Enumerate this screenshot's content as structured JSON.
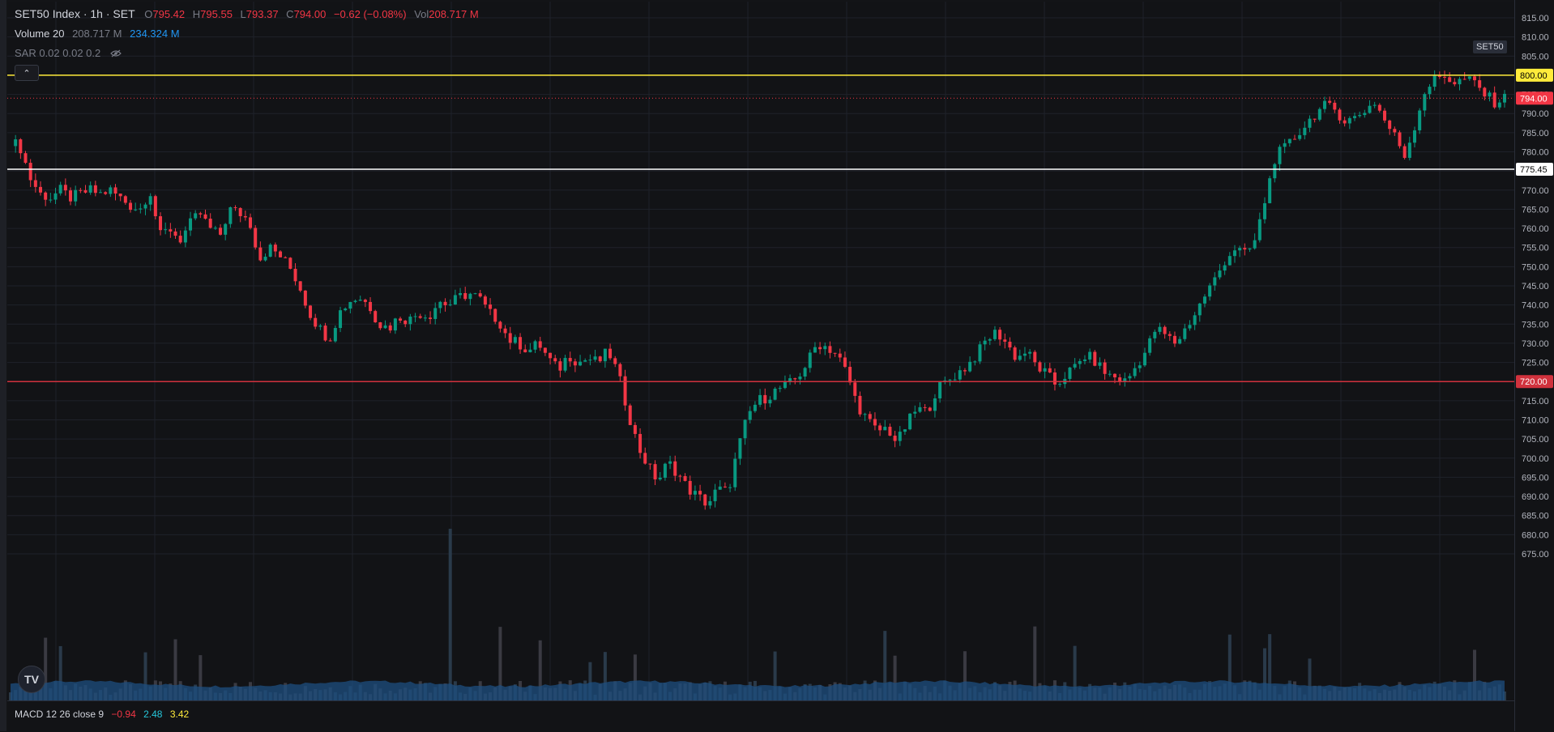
{
  "legend": {
    "symbol": "SET50 Index · 1h · SET",
    "o_label": "O",
    "o_val": "795.42",
    "h_label": "H",
    "h_val": "795.55",
    "l_label": "L",
    "l_val": "793.37",
    "c_label": "C",
    "c_val": "794.00",
    "change": "−0.62 (−0.08%)",
    "vol_label": "Vol",
    "vol_val": "208.717 M",
    "volume_ind": "Volume 20",
    "volume_v1": "208.717 M",
    "volume_v2": "234.324 M",
    "sar": "SAR 0.02 0.02 0.2",
    "collapse_icon": "chevron-up"
  },
  "macd": {
    "label": "MACD 12 26 close 9",
    "v1": "−0.94",
    "v2": "2.48",
    "v3": "3.42"
  },
  "axis": {
    "ticks": [
      "815.00",
      "810.00",
      "805.00",
      "800.00",
      "795.00",
      "790.00",
      "785.00",
      "780.00",
      "775.00",
      "770.00",
      "765.00",
      "760.00",
      "755.00",
      "750.00",
      "745.00",
      "740.00",
      "735.00",
      "730.00",
      "725.00",
      "720.00",
      "715.00",
      "710.00",
      "705.00",
      "700.00",
      "695.00",
      "690.00",
      "685.00",
      "680.00",
      "675.00"
    ],
    "tick_values": [
      815,
      810,
      805,
      800,
      795,
      790,
      785,
      780,
      775,
      770,
      765,
      760,
      755,
      750,
      745,
      740,
      735,
      730,
      725,
      720,
      715,
      710,
      705,
      700,
      695,
      690,
      685,
      680,
      675
    ],
    "symbol_badge": "SET50"
  },
  "levels": [
    {
      "value": 800.0,
      "label": "800.00",
      "color": "#ffeb3b",
      "text_color": "#000000"
    },
    {
      "value": 775.45,
      "label": "775.45",
      "color": "#ffffff",
      "text_color": "#000000"
    },
    {
      "value": 720.0,
      "label": "720.00",
      "color": "#d1323d",
      "text_color": "#ffffff"
    }
  ],
  "last_price": {
    "value": 794.0,
    "label": "794.00",
    "color": "#f23645"
  },
  "colors": {
    "up": "#089981",
    "down": "#f23645",
    "volume": "#2962ff",
    "grid": "#1f222a"
  },
  "chart_data": {
    "type": "candlestick",
    "ylim": [
      672,
      818
    ],
    "anchor_closes": [
      783,
      781,
      773,
      769,
      768,
      770,
      768,
      769,
      770,
      769,
      770,
      768,
      766,
      765,
      770,
      758,
      760,
      757,
      761,
      764,
      760,
      758,
      765,
      764,
      762,
      752,
      755,
      753,
      750,
      745,
      738,
      734,
      731,
      738,
      741,
      742,
      740,
      735,
      734,
      737,
      736,
      738,
      737,
      741,
      740,
      742,
      743,
      742,
      738,
      736,
      731,
      730,
      728,
      730,
      726,
      723,
      727,
      725,
      726,
      725,
      728,
      722,
      712,
      703,
      698,
      694,
      699,
      696,
      692,
      690,
      688,
      692,
      691,
      702,
      711,
      715,
      716,
      718,
      719,
      721,
      725,
      730,
      729,
      727,
      722,
      714,
      710,
      707,
      708,
      704,
      709,
      713,
      712,
      718,
      720,
      722,
      724,
      727,
      731,
      733,
      730,
      726,
      728,
      724,
      722,
      719,
      722,
      724,
      727,
      725,
      722,
      721,
      720,
      724,
      728,
      734,
      732,
      730,
      734,
      738,
      743,
      747,
      752,
      755,
      753,
      757,
      768,
      779,
      781,
      784,
      787,
      790,
      792,
      791,
      788,
      789,
      791,
      793,
      788,
      784,
      779,
      787,
      796,
      799,
      800,
      798,
      799,
      798,
      795,
      793,
      794
    ]
  }
}
